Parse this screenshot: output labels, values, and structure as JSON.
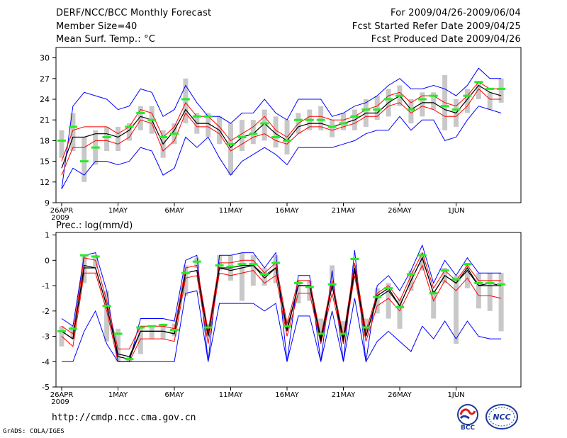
{
  "header": {
    "title": "DERF/NCC/BCC Monthly Forecast",
    "member_size": "Member Size=40",
    "variable": "Mean Surf. Temp.: °C",
    "for_range": "For 2009/04/26-2009/06/04",
    "started": "Fcst Started Refer Date 2009/04/25",
    "produced": "Fcst Produced Date 2009/04/26"
  },
  "colors": {
    "envelope": "#0000ff",
    "quantile": "#ff0000",
    "median": "#000000",
    "bar": "#c8c8c8",
    "marker": "#22ee22"
  },
  "chart_data": [
    {
      "type": "line",
      "title": "Mean Surf. Temp.: °C",
      "ylabel": "°C",
      "ylim": [
        9,
        31.5
      ],
      "yticks": [
        9,
        12,
        15,
        18,
        21,
        24,
        27,
        30
      ],
      "xlabels": [
        "26APR",
        "1MAY",
        "6MAY",
        "11MAY",
        "16MAY",
        "21MAY",
        "26MAY",
        "1JUN"
      ],
      "xlabel_year": "2009",
      "days": 40,
      "series": [
        {
          "name": "max",
          "values": [
            11,
            23,
            25,
            24.5,
            24,
            22.5,
            23,
            25.5,
            25,
            21.5,
            22.5,
            26,
            23.5,
            21.5,
            21.5,
            20.5,
            22,
            22,
            24,
            22,
            21,
            24,
            24,
            24,
            21.5,
            22,
            23,
            23.5,
            24.5,
            26,
            27,
            25.5,
            25.5,
            26,
            25.5,
            24.5,
            26,
            28.5,
            27,
            27
          ]
        },
        {
          "name": "upper",
          "values": [
            15,
            19.5,
            20,
            20,
            20,
            19,
            20,
            22.5,
            22,
            18.5,
            20,
            23.5,
            21.5,
            21.5,
            20,
            18,
            19,
            20,
            21.5,
            19.5,
            18.5,
            20.5,
            21.5,
            21.5,
            21,
            21,
            21.5,
            22.5,
            23,
            24.5,
            25,
            23.5,
            24.5,
            24.5,
            23.5,
            23,
            24.5,
            26.5,
            25.5,
            25.5
          ]
        },
        {
          "name": "median",
          "values": [
            14,
            18.5,
            18.5,
            19,
            19,
            18.5,
            19.5,
            21.5,
            21,
            17.5,
            19.5,
            22.5,
            20.5,
            20.5,
            19.5,
            17,
            18.5,
            19,
            20.5,
            19,
            18,
            20,
            20.5,
            20.5,
            20,
            20.5,
            21,
            22,
            22,
            23.5,
            24.5,
            22.5,
            23.5,
            23.5,
            22.5,
            22,
            24,
            26,
            25,
            24.5
          ]
        },
        {
          "name": "lower",
          "values": [
            13,
            17,
            17,
            18,
            18,
            17.5,
            18.5,
            21,
            20.5,
            16.5,
            18,
            22,
            20,
            20,
            19,
            16.5,
            17.5,
            18.5,
            19,
            18,
            17.5,
            19,
            20,
            20,
            19.5,
            20,
            20.5,
            21.5,
            21.5,
            23,
            23.5,
            22,
            23,
            22.5,
            21.5,
            21.5,
            23,
            25.5,
            24,
            24
          ]
        },
        {
          "name": "min",
          "values": [
            11,
            14,
            13,
            15,
            15,
            14.5,
            15,
            17,
            16.5,
            13,
            14,
            18.5,
            17,
            18.5,
            15.5,
            13,
            15,
            16,
            17,
            16,
            14.5,
            17,
            17,
            17,
            17,
            17.5,
            18,
            19,
            19.5,
            19.5,
            21.5,
            19.5,
            21,
            21,
            18,
            18.5,
            21,
            23,
            22.5,
            22
          ]
        }
      ],
      "box_low": [
        15.5,
        16.5,
        12,
        14.5,
        16.5,
        16.5,
        18,
        19.5,
        19,
        15.5,
        17.5,
        20.5,
        19,
        18.5,
        17.5,
        13,
        16.5,
        17.5,
        18,
        17,
        16,
        19,
        19.5,
        19.5,
        18.5,
        19.5,
        19.5,
        20,
        21,
        21.5,
        23,
        20.5,
        21.5,
        22.5,
        19.5,
        20,
        22,
        24,
        22.5,
        23.5
      ],
      "box_high": [
        19.5,
        22,
        18.5,
        19.5,
        20,
        20,
        20.5,
        23,
        23,
        19.5,
        20.5,
        27,
        22,
        22,
        21.5,
        20.5,
        21,
        21,
        22.5,
        21.5,
        21,
        22,
        22.5,
        23,
        21,
        22,
        22.5,
        24,
        24.5,
        25.5,
        26,
        24,
        25,
        25,
        27.5,
        24,
        25.5,
        26.5,
        25,
        27
      ],
      "obs": [
        18,
        20,
        15,
        17,
        18.5,
        null,
        20,
        22,
        21,
        18.5,
        19,
        24,
        21.5,
        21.5,
        null,
        17.5,
        18.5,
        19,
        20.5,
        18.5,
        18,
        21,
        21,
        21,
        20,
        20.5,
        21.5,
        22.5,
        22.5,
        24,
        24.5,
        22.5,
        24,
        24.5,
        23,
        22.5,
        24.5,
        26.5,
        25.5,
        25.5
      ]
    },
    {
      "type": "line",
      "title": "Prec.: log(mm/d)",
      "ylabel": "log(mm/d)",
      "ylim": [
        -5,
        1.1
      ],
      "yticks": [
        -5,
        -4,
        -3,
        -2,
        -1,
        0,
        1
      ],
      "xlabels": [
        "26APR",
        "1MAY",
        "6MAY",
        "11MAY",
        "16MAY",
        "21MAY",
        "26MAY",
        "1JUN"
      ],
      "xlabel_year": "2009",
      "days": 40,
      "series": [
        {
          "name": "max",
          "values": [
            -2.3,
            -2.6,
            0.2,
            0.3,
            -1.2,
            -4,
            -4,
            -2.3,
            -2.3,
            -2.3,
            -2.4,
            0,
            0.2,
            -4,
            0.2,
            0.2,
            0.3,
            0.3,
            -0.3,
            0.3,
            -4,
            -0.6,
            -0.6,
            -4,
            -0.4,
            -4,
            0.4,
            -4,
            -1,
            -0.6,
            -1.2,
            -0.4,
            0.6,
            -0.9,
            0,
            -0.6,
            0.1,
            -0.5,
            -0.5,
            -0.5
          ]
        },
        {
          "name": "upper",
          "values": [
            -2.6,
            -2.9,
            0.1,
            0,
            -1.6,
            -3.5,
            -3.5,
            -2.6,
            -2.6,
            -2.6,
            -2.7,
            -0.3,
            -0.2,
            -2.8,
            -0.1,
            -0.1,
            0,
            0,
            -0.5,
            -0.1,
            -2.5,
            -0.8,
            -0.8,
            -3.0,
            -0.8,
            -3,
            -0.1,
            -2.8,
            -1.3,
            -1,
            -1.6,
            -0.6,
            0.3,
            -1.1,
            -0.4,
            -0.8,
            -0.2,
            -0.8,
            -0.8,
            -0.8
          ]
        },
        {
          "name": "median",
          "values": [
            -2.8,
            -3.1,
            -0.2,
            -0.3,
            -1.8,
            -3.7,
            -3.8,
            -2.8,
            -2.8,
            -2.8,
            -2.9,
            -0.5,
            -0.4,
            -3.0,
            -0.3,
            -0.3,
            -0.2,
            -0.2,
            -0.7,
            -0.3,
            -2.7,
            -1.0,
            -1.0,
            -3.1,
            -1.0,
            -3.1,
            -0.3,
            -3.0,
            -1.5,
            -1.2,
            -1.8,
            -0.8,
            0.1,
            -1.3,
            -0.6,
            -0.9,
            -0.4,
            -1.0,
            -1.0,
            -1.0
          ]
        },
        {
          "name": "lower",
          "values": [
            -3.0,
            -3.4,
            -0.5,
            -0.5,
            -2.0,
            -4,
            -4,
            -3.1,
            -3.1,
            -3.1,
            -3.2,
            -0.7,
            -0.6,
            -3.3,
            -0.5,
            -0.6,
            -0.5,
            -0.4,
            -0.9,
            -0.6,
            -3.0,
            -1.3,
            -1.3,
            -3.3,
            -1.3,
            -3.3,
            -0.6,
            -3.2,
            -1.8,
            -1.5,
            -2.0,
            -1.1,
            -0.2,
            -1.6,
            -0.8,
            -1.2,
            -0.7,
            -1.4,
            -1.4,
            -1.5
          ]
        },
        {
          "name": "min",
          "values": [
            -4,
            -4,
            -2.8,
            -2,
            -3.3,
            -4,
            -4,
            -4,
            -4,
            -4,
            -4,
            -1.3,
            -1.2,
            -4,
            -1.7,
            -1.7,
            -1.7,
            -1.7,
            -2,
            -1.7,
            -4,
            -2.2,
            -2.2,
            -4,
            -2.0,
            -4,
            -1.5,
            -4,
            -3.2,
            -2.8,
            -3.2,
            -3.6,
            -2.6,
            -3.1,
            -2.4,
            -3.1,
            -2.4,
            -3.0,
            -3.1,
            -3.1
          ]
        },
        {
          "name": "median_dark",
          "values": [
            -2.8,
            -3.1,
            -0.3,
            -0.3,
            -1.8,
            -3.8,
            -3.9,
            -2.8,
            -2.8,
            -2.8,
            -2.9,
            -0.5,
            -0.4,
            -3.0,
            -0.3,
            -0.4,
            -0.3,
            -0.2,
            -0.6,
            -0.3,
            -2.8,
            -1.0,
            -1.0,
            -3.2,
            -1.0,
            -3.2,
            -0.4,
            -3.0,
            -1.4,
            -1.1,
            -1.8,
            -0.8,
            0.1,
            -1.3,
            -0.6,
            -0.9,
            -0.3,
            -1.0,
            -0.9,
            -1.0
          ]
        }
      ],
      "box_low": [
        -3.4,
        -3.1,
        -0.9,
        -0.3,
        -3.2,
        -4,
        -4,
        -3.7,
        -3.1,
        -3.1,
        -3.0,
        -1.4,
        -0.3,
        -2.9,
        -0.4,
        -0.8,
        -1.6,
        -1.0,
        -1.0,
        -0.9,
        -2.7,
        -1.7,
        -1.6,
        -2.9,
        -1.2,
        -2.9,
        -0.2,
        -3.0,
        -2.1,
        -2.3,
        -2.7,
        -1.2,
        -0.4,
        -2.3,
        -0.9,
        -3.3,
        -1.1,
        -1.9,
        -2.0,
        -2.8
      ],
      "box_high": [
        -2.6,
        -2.6,
        0.2,
        0.2,
        -1.2,
        -2.7,
        -3.8,
        -2.6,
        -2.6,
        -2.5,
        -2.5,
        -0.2,
        0.1,
        -2.5,
        0.2,
        0.2,
        0.3,
        0.2,
        -0.3,
        0.2,
        -2.3,
        -0.8,
        -0.8,
        -2.3,
        -0.2,
        -2.4,
        -0.3,
        -2.3,
        -1.1,
        -0.9,
        -1.5,
        -0.4,
        0.3,
        -1.2,
        -0.3,
        -0.6,
        -0.1,
        -0.5,
        -0.5,
        -0.5
      ],
      "obs": [
        -2.8,
        -2.7,
        0.2,
        0.15,
        -1.8,
        -2.9,
        -3.9,
        -2.65,
        -2.6,
        -2.55,
        -2.75,
        -0.5,
        -0.05,
        -2.65,
        -0.2,
        -0.25,
        -0.15,
        -0.15,
        -0.55,
        -0.1,
        -2.6,
        -0.9,
        -1.05,
        -2.9,
        -0.95,
        -2.9,
        0.05,
        -2.65,
        -1.45,
        -1.1,
        -1.85,
        -0.55,
        0.2,
        -1.3,
        -0.4,
        -0.75,
        -0.15,
        -0.9,
        -0.9,
        -0.95
      ]
    }
  ],
  "footer": {
    "url": "http://cmdp.ncc.cma.gov.cn",
    "grads": "GrADS: COLA/IGES",
    "logo_bcc": "BCC",
    "logo_ncc": "NCC"
  }
}
